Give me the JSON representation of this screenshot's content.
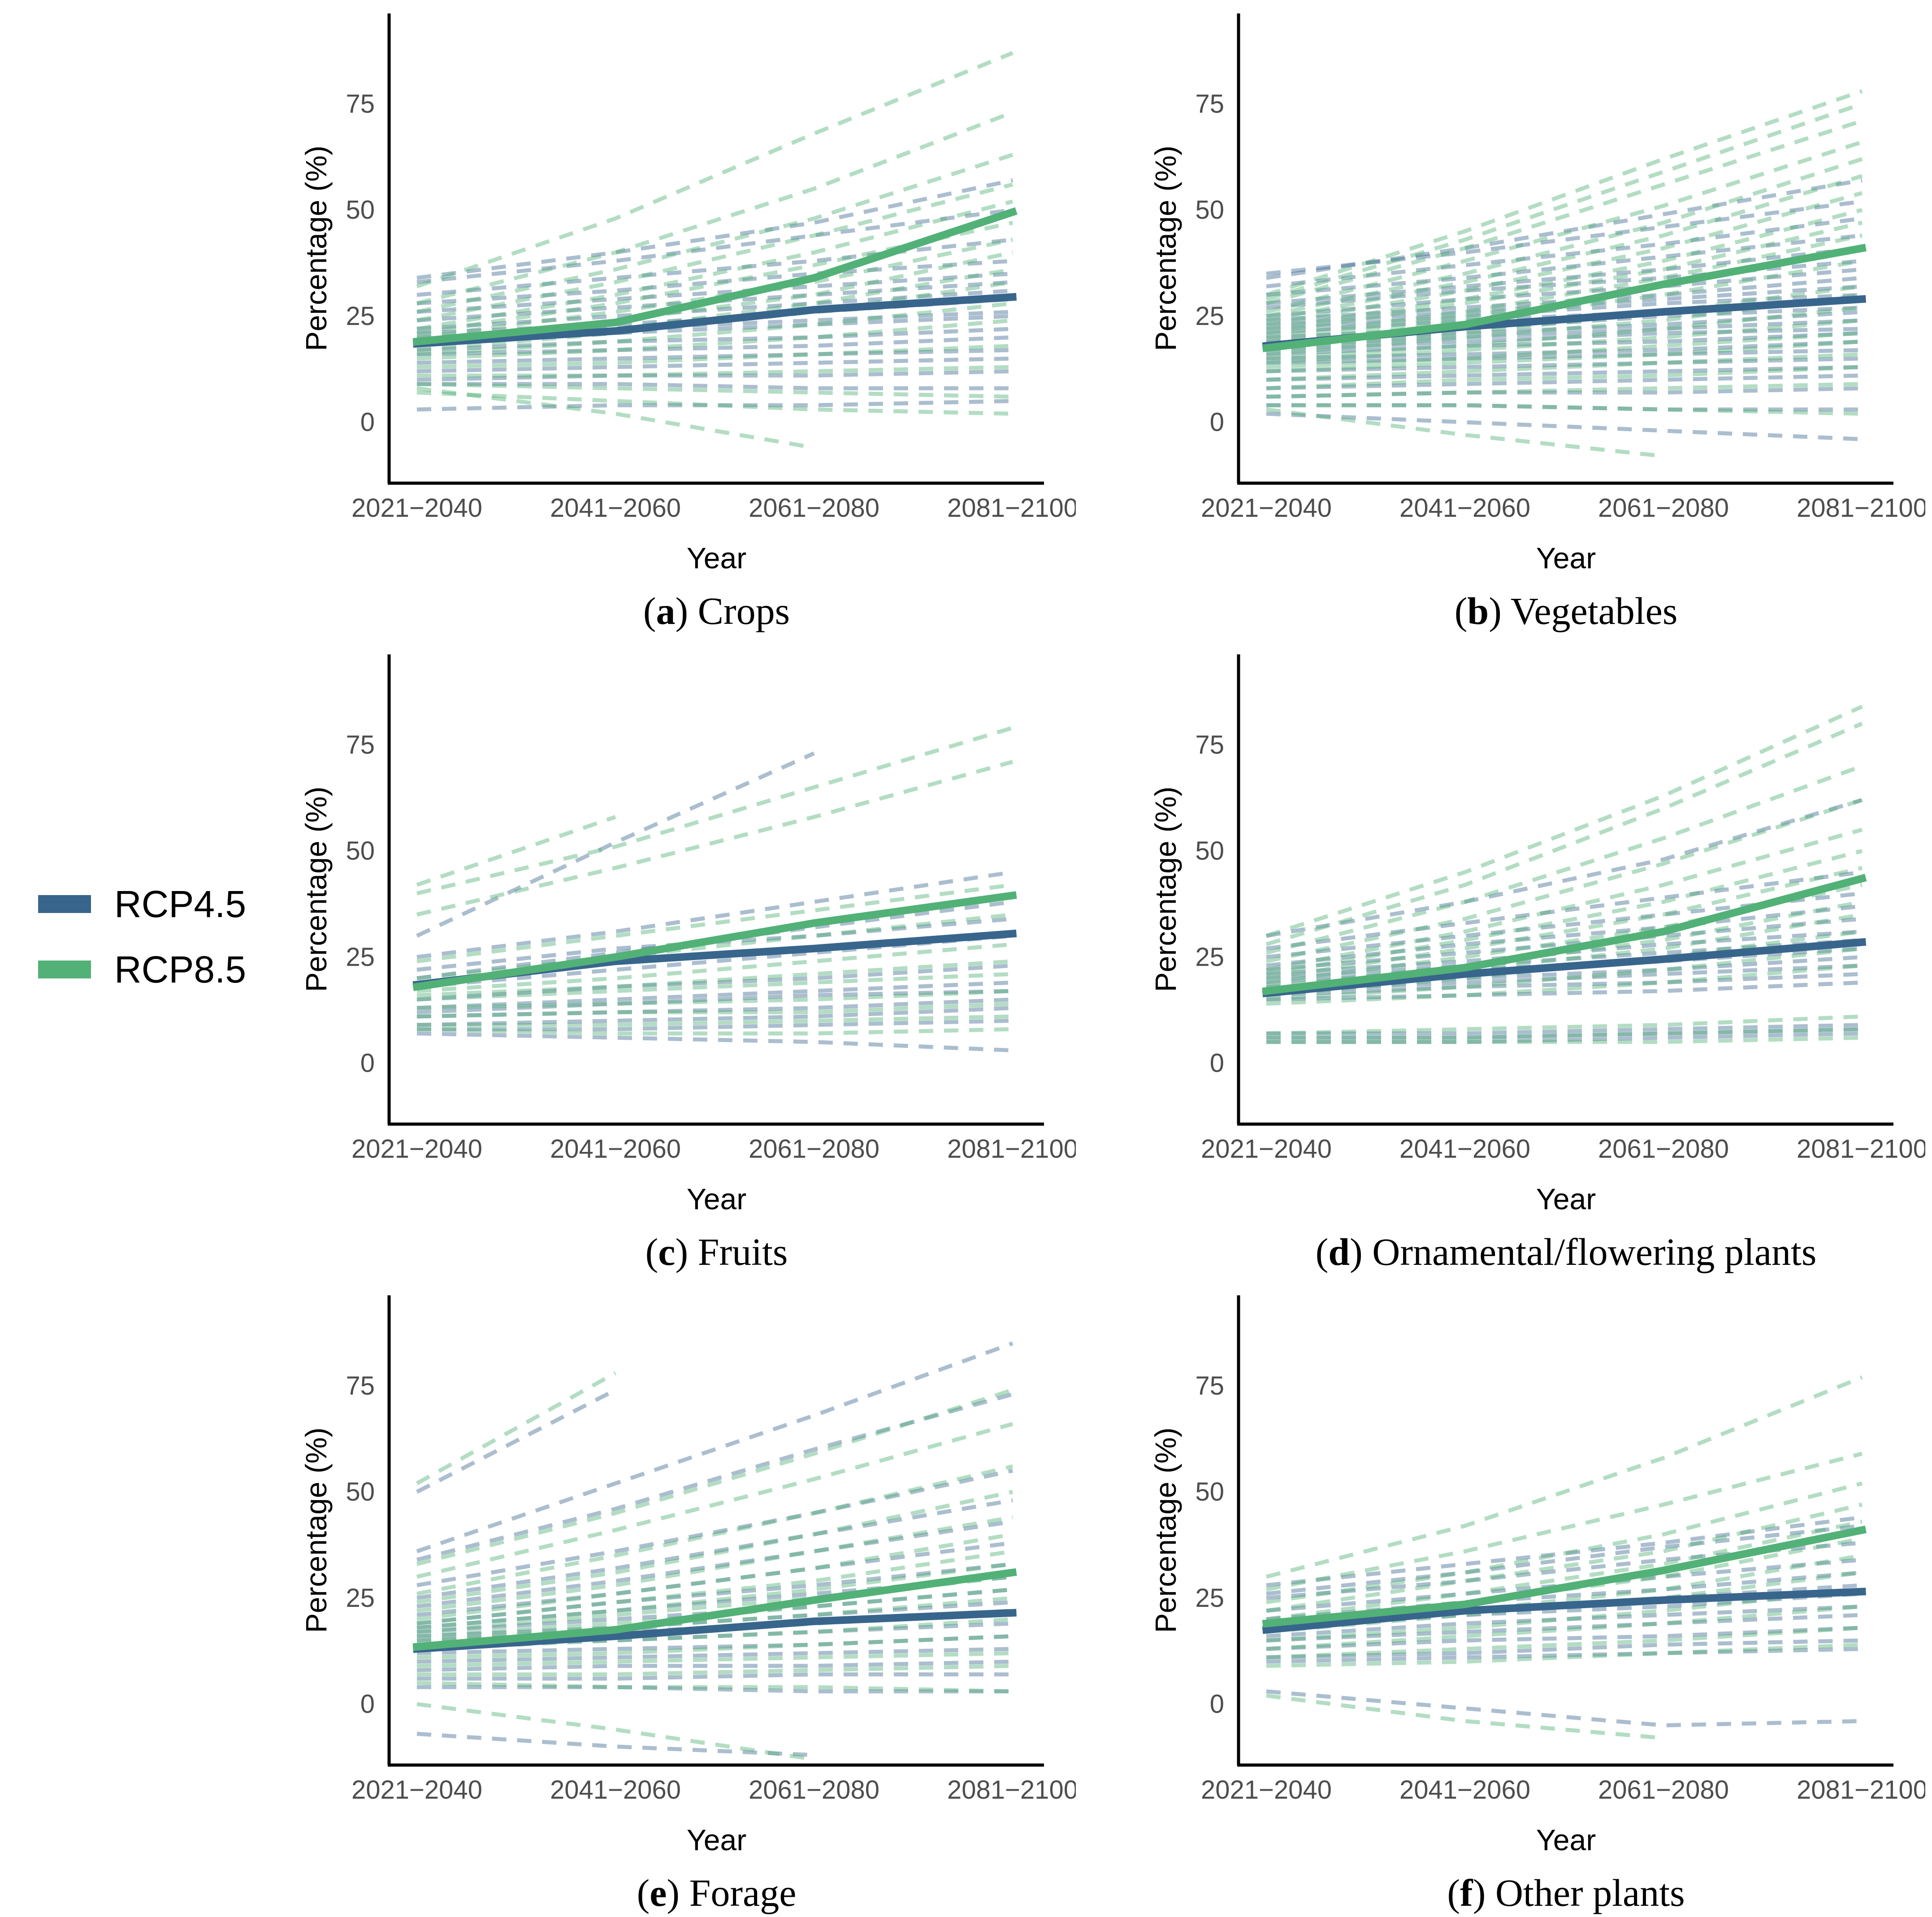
{
  "figure": {
    "ylabel": "Percentage (%)",
    "xlabel": "Year",
    "x_categories": [
      "2021−2040",
      "2041−2060",
      "2061−2080",
      "2081−2100"
    ],
    "ytick_labels": [
      "0",
      "25",
      "50",
      "75"
    ],
    "yticks": [
      0,
      25,
      50,
      75
    ],
    "ylim": [
      -14,
      96
    ],
    "background": "#ffffff",
    "axis_color": "#000000",
    "tick_label_color": "#4d4d4d",
    "grid": "off",
    "legend_position": "left-middle"
  },
  "legend": {
    "items": [
      {
        "label": "RCP4.5",
        "color": "#38658c"
      },
      {
        "label": "RCP8.5",
        "color": "#52b177"
      }
    ]
  },
  "chart_data": [
    {
      "type": "line",
      "panel_letter": "a",
      "title": "Crops",
      "series": [
        {
          "name": "RCP4.5",
          "style": "solid",
          "color": "#38658c",
          "values": [
            18.5,
            21.5,
            26.5,
            29.5
          ]
        },
        {
          "name": "RCP8.5",
          "style": "solid",
          "color": "#52b177",
          "values": [
            19,
            23.5,
            34,
            49.5
          ]
        }
      ],
      "ensemble_rcp45": [
        [
          33,
          38,
          44,
          50
        ],
        [
          30,
          34,
          38,
          43
        ],
        [
          28,
          31,
          35,
          38
        ],
        [
          26,
          29,
          32,
          35
        ],
        [
          24,
          27,
          30,
          33
        ],
        [
          22,
          25,
          28,
          31
        ],
        [
          21,
          23,
          26,
          29
        ],
        [
          20,
          22,
          24,
          26
        ],
        [
          19,
          21,
          23,
          25
        ],
        [
          17,
          19,
          20,
          22
        ],
        [
          16,
          17,
          18,
          20
        ],
        [
          14,
          15,
          16,
          17
        ],
        [
          12,
          13,
          14,
          15
        ],
        [
          10,
          11,
          11,
          12
        ],
        [
          9,
          9,
          8,
          8
        ],
        [
          3,
          4,
          4,
          5
        ],
        [
          34,
          40,
          47,
          57
        ]
      ],
      "ensemble_rcp85": [
        [
          32,
          48,
          68,
          87
        ],
        [
          28,
          40,
          55,
          73
        ],
        [
          26,
          36,
          48,
          63
        ],
        [
          24,
          33,
          44,
          56
        ],
        [
          22,
          30,
          40,
          52
        ],
        [
          21,
          28,
          37,
          47
        ],
        [
          20,
          26,
          33,
          43
        ],
        [
          19,
          24,
          30,
          40
        ],
        [
          18,
          22,
          28,
          36
        ],
        [
          17,
          21,
          26,
          33
        ],
        [
          16,
          19,
          23,
          28
        ],
        [
          15,
          17,
          20,
          24
        ],
        [
          13,
          14,
          16,
          18
        ],
        [
          11,
          11,
          12,
          13
        ],
        [
          9,
          8,
          7,
          6
        ],
        [
          7,
          5,
          3,
          2
        ],
        [
          8,
          2,
          -6
        ]
      ]
    },
    {
      "type": "line",
      "panel_letter": "b",
      "title": "Vegetables",
      "series": [
        {
          "name": "RCP4.5",
          "style": "solid",
          "color": "#38658c",
          "values": [
            18,
            22.5,
            26,
            29
          ]
        },
        {
          "name": "RCP8.5",
          "style": "solid",
          "color": "#52b177",
          "values": [
            17.5,
            23,
            32.5,
            41
          ]
        }
      ],
      "ensemble_rcp45": [
        [
          35,
          40,
          46,
          52
        ],
        [
          32,
          37,
          42,
          48
        ],
        [
          30,
          34,
          39,
          44
        ],
        [
          28,
          32,
          36,
          41
        ],
        [
          27,
          31,
          34,
          38
        ],
        [
          25,
          29,
          32,
          36
        ],
        [
          24,
          27,
          30,
          34
        ],
        [
          23,
          26,
          29,
          32
        ],
        [
          22,
          25,
          28,
          30
        ],
        [
          21,
          24,
          26,
          29
        ],
        [
          20,
          22,
          25,
          27
        ],
        [
          19,
          21,
          23,
          26
        ],
        [
          18,
          20,
          22,
          24
        ],
        [
          17,
          19,
          21,
          22
        ],
        [
          16,
          18,
          19,
          21
        ],
        [
          15,
          16,
          17,
          19
        ],
        [
          14,
          15,
          16,
          17
        ],
        [
          12,
          13,
          14,
          15
        ],
        [
          10,
          11,
          12,
          13
        ],
        [
          8,
          9,
          10,
          11
        ],
        [
          6,
          7,
          7,
          8
        ],
        [
          4,
          4,
          3,
          3
        ],
        [
          2,
          0,
          -2,
          -4
        ],
        [
          34,
          41,
          49,
          57
        ]
      ],
      "ensemble_rcp85": [
        [
          30,
          45,
          62,
          78
        ],
        [
          28,
          41,
          56,
          71
        ],
        [
          26,
          38,
          51,
          66
        ],
        [
          25,
          35,
          47,
          62
        ],
        [
          24,
          33,
          44,
          58
        ],
        [
          23,
          31,
          41,
          54
        ],
        [
          22,
          29,
          38,
          50
        ],
        [
          21,
          28,
          36,
          47
        ],
        [
          20,
          26,
          34,
          44
        ],
        [
          19,
          25,
          32,
          41
        ],
        [
          18,
          24,
          30,
          38
        ],
        [
          17,
          21,
          26,
          32
        ],
        [
          16,
          20,
          24,
          30
        ],
        [
          15,
          18,
          22,
          27
        ],
        [
          14,
          17,
          20,
          24
        ],
        [
          13,
          15,
          18,
          21
        ],
        [
          12,
          14,
          16,
          19
        ],
        [
          10,
          12,
          14,
          16
        ],
        [
          8,
          10,
          11,
          13
        ],
        [
          6,
          7,
          8,
          9
        ],
        [
          4,
          4,
          3,
          2
        ],
        [
          3,
          -3,
          -8
        ],
        [
          29,
          43,
          59,
          75
        ]
      ]
    },
    {
      "type": "line",
      "panel_letter": "c",
      "title": "Fruits",
      "series": [
        {
          "name": "RCP4.5",
          "style": "solid",
          "color": "#38658c",
          "values": [
            18.5,
            24,
            27,
            30.5
          ]
        },
        {
          "name": "RCP8.5",
          "style": "solid",
          "color": "#52b177",
          "values": [
            18,
            25,
            33,
            39.5
          ]
        }
      ],
      "ensemble_rcp45": [
        [
          30,
          52,
          73
        ],
        [
          25,
          31,
          38,
          45
        ],
        [
          22,
          27,
          30,
          34
        ],
        [
          20,
          26,
          32,
          38
        ],
        [
          18,
          22,
          26,
          30
        ],
        [
          15,
          18,
          20,
          23
        ],
        [
          13,
          15,
          17,
          19
        ],
        [
          12,
          14,
          16,
          17
        ],
        [
          11,
          12,
          13,
          15
        ],
        [
          9,
          10,
          11,
          13
        ],
        [
          8,
          8,
          9,
          10
        ],
        [
          7,
          6,
          5,
          3
        ]
      ],
      "ensemble_rcp85": [
        [
          40,
          51,
          65,
          79
        ],
        [
          35,
          46,
          58,
          71
        ],
        [
          42,
          58
        ],
        [
          24,
          30,
          36,
          42
        ],
        [
          20,
          25,
          30,
          35
        ],
        [
          17,
          20,
          24,
          28
        ],
        [
          16,
          18,
          21,
          24
        ],
        [
          15,
          17,
          19,
          21
        ],
        [
          13,
          14,
          15,
          17
        ],
        [
          11,
          12,
          12,
          14
        ],
        [
          9,
          9,
          10,
          11
        ],
        [
          8,
          7,
          7,
          8
        ]
      ]
    },
    {
      "type": "line",
      "panel_letter": "d",
      "title": "Ornamental/flowering plants",
      "series": [
        {
          "name": "RCP4.5",
          "style": "solid",
          "color": "#38658c",
          "values": [
            16.5,
            21,
            24.5,
            28.5
          ]
        },
        {
          "name": "RCP8.5",
          "style": "solid",
          "color": "#52b177",
          "values": [
            17,
            22.5,
            31,
            43.5
          ]
        }
      ],
      "ensemble_rcp45": [
        [
          30,
          38,
          48,
          62
        ],
        [
          27,
          33,
          39,
          45
        ],
        [
          25,
          30,
          35,
          40
        ],
        [
          23,
          28,
          32,
          37
        ],
        [
          22,
          26,
          30,
          34
        ],
        [
          21,
          24,
          28,
          31
        ],
        [
          20,
          23,
          26,
          29
        ],
        [
          19,
          22,
          24,
          27
        ],
        [
          18,
          20,
          22,
          25
        ],
        [
          17,
          19,
          21,
          23
        ],
        [
          16,
          18,
          19,
          21
        ],
        [
          15,
          16,
          17,
          19
        ],
        [
          7,
          7,
          8,
          9
        ],
        [
          6,
          6,
          7,
          8
        ],
        [
          5,
          5,
          6,
          7
        ]
      ],
      "ensemble_rcp85": [
        [
          30,
          45,
          63,
          84
        ],
        [
          28,
          42,
          60,
          80
        ],
        [
          26,
          38,
          53,
          70
        ],
        [
          24,
          34,
          47,
          62
        ],
        [
          22,
          31,
          42,
          55
        ],
        [
          21,
          29,
          38,
          50
        ],
        [
          20,
          27,
          35,
          46
        ],
        [
          19,
          25,
          32,
          42
        ],
        [
          18,
          23,
          29,
          38
        ],
        [
          17,
          22,
          27,
          35
        ],
        [
          16,
          20,
          25,
          31
        ],
        [
          15,
          18,
          22,
          27
        ],
        [
          14,
          16,
          19,
          23
        ],
        [
          7,
          8,
          9,
          11
        ],
        [
          6,
          6,
          7,
          8
        ],
        [
          5,
          5,
          5,
          6
        ]
      ]
    },
    {
      "type": "line",
      "panel_letter": "e",
      "title": "Forage",
      "series": [
        {
          "name": "RCP4.5",
          "style": "solid",
          "color": "#38658c",
          "values": [
            13,
            16,
            19.5,
            21.5
          ]
        },
        {
          "name": "RCP8.5",
          "style": "solid",
          "color": "#52b177",
          "values": [
            13.5,
            17.5,
            24.5,
            31
          ]
        }
      ],
      "ensemble_rcp45": [
        [
          50,
          74
        ],
        [
          36,
          52,
          68,
          85
        ],
        [
          34,
          46,
          60,
          73
        ],
        [
          28,
          36,
          45,
          55
        ],
        [
          25,
          32,
          40,
          48
        ],
        [
          23,
          29,
          36,
          43
        ],
        [
          21,
          26,
          32,
          38
        ],
        [
          19,
          24,
          28,
          33
        ],
        [
          18,
          22,
          26,
          30
        ],
        [
          17,
          20,
          23,
          27
        ],
        [
          16,
          18,
          21,
          24
        ],
        [
          15,
          17,
          19,
          22
        ],
        [
          14,
          15,
          17,
          19
        ],
        [
          12,
          13,
          14,
          16
        ],
        [
          10,
          11,
          12,
          13
        ],
        [
          8,
          9,
          9,
          10
        ],
        [
          6,
          6,
          7,
          7
        ],
        [
          4,
          4,
          3,
          3
        ],
        [
          -7,
          -10,
          -12
        ]
      ],
      "ensemble_rcp85": [
        [
          52,
          78
        ],
        [
          33,
          45,
          59,
          74
        ],
        [
          30,
          41,
          53,
          66
        ],
        [
          26,
          35,
          45,
          56
        ],
        [
          24,
          31,
          40,
          50
        ],
        [
          22,
          28,
          36,
          44
        ],
        [
          20,
          26,
          32,
          40
        ],
        [
          19,
          24,
          29,
          36
        ],
        [
          18,
          22,
          27,
          33
        ],
        [
          17,
          21,
          25,
          30
        ],
        [
          16,
          19,
          23,
          27
        ],
        [
          15,
          18,
          21,
          25
        ],
        [
          14,
          16,
          19,
          22
        ],
        [
          13,
          15,
          17,
          20
        ],
        [
          11,
          12,
          14,
          16
        ],
        [
          9,
          10,
          11,
          12
        ],
        [
          7,
          7,
          8,
          9
        ],
        [
          5,
          4,
          4,
          3
        ],
        [
          0,
          -6,
          -13
        ]
      ]
    },
    {
      "type": "line",
      "panel_letter": "f",
      "title": "Other plants",
      "series": [
        {
          "name": "RCP4.5",
          "style": "solid",
          "color": "#38658c",
          "values": [
            17.5,
            22,
            24.5,
            26.5
          ]
        },
        {
          "name": "RCP8.5",
          "style": "solid",
          "color": "#52b177",
          "values": [
            19,
            23.5,
            31.5,
            41
          ]
        }
      ],
      "ensemble_rcp45": [
        [
          28,
          33,
          38,
          44
        ],
        [
          26,
          31,
          37,
          42
        ],
        [
          25,
          29,
          34,
          38
        ],
        [
          22,
          26,
          30,
          34
        ],
        [
          20,
          24,
          27,
          31
        ],
        [
          19,
          22,
          25,
          28
        ],
        [
          18,
          21,
          23,
          26
        ],
        [
          16,
          19,
          21,
          23
        ],
        [
          15,
          17,
          19,
          21
        ],
        [
          13,
          15,
          16,
          18
        ],
        [
          11,
          12,
          14,
          15
        ],
        [
          10,
          11,
          12,
          13
        ],
        [
          3,
          -1,
          -5,
          -4
        ]
      ],
      "ensemble_rcp85": [
        [
          30,
          42,
          58,
          77
        ],
        [
          27,
          36,
          47,
          59
        ],
        [
          24,
          31,
          40,
          52
        ],
        [
          22,
          29,
          36,
          47
        ],
        [
          20,
          26,
          33,
          43
        ],
        [
          19,
          24,
          30,
          39
        ],
        [
          18,
          22,
          27,
          35
        ],
        [
          17,
          21,
          25,
          31
        ],
        [
          15,
          18,
          22,
          27
        ],
        [
          13,
          16,
          19,
          23
        ],
        [
          11,
          13,
          15,
          18
        ],
        [
          9,
          10,
          12,
          14
        ],
        [
          2,
          -4,
          -8
        ]
      ]
    }
  ]
}
